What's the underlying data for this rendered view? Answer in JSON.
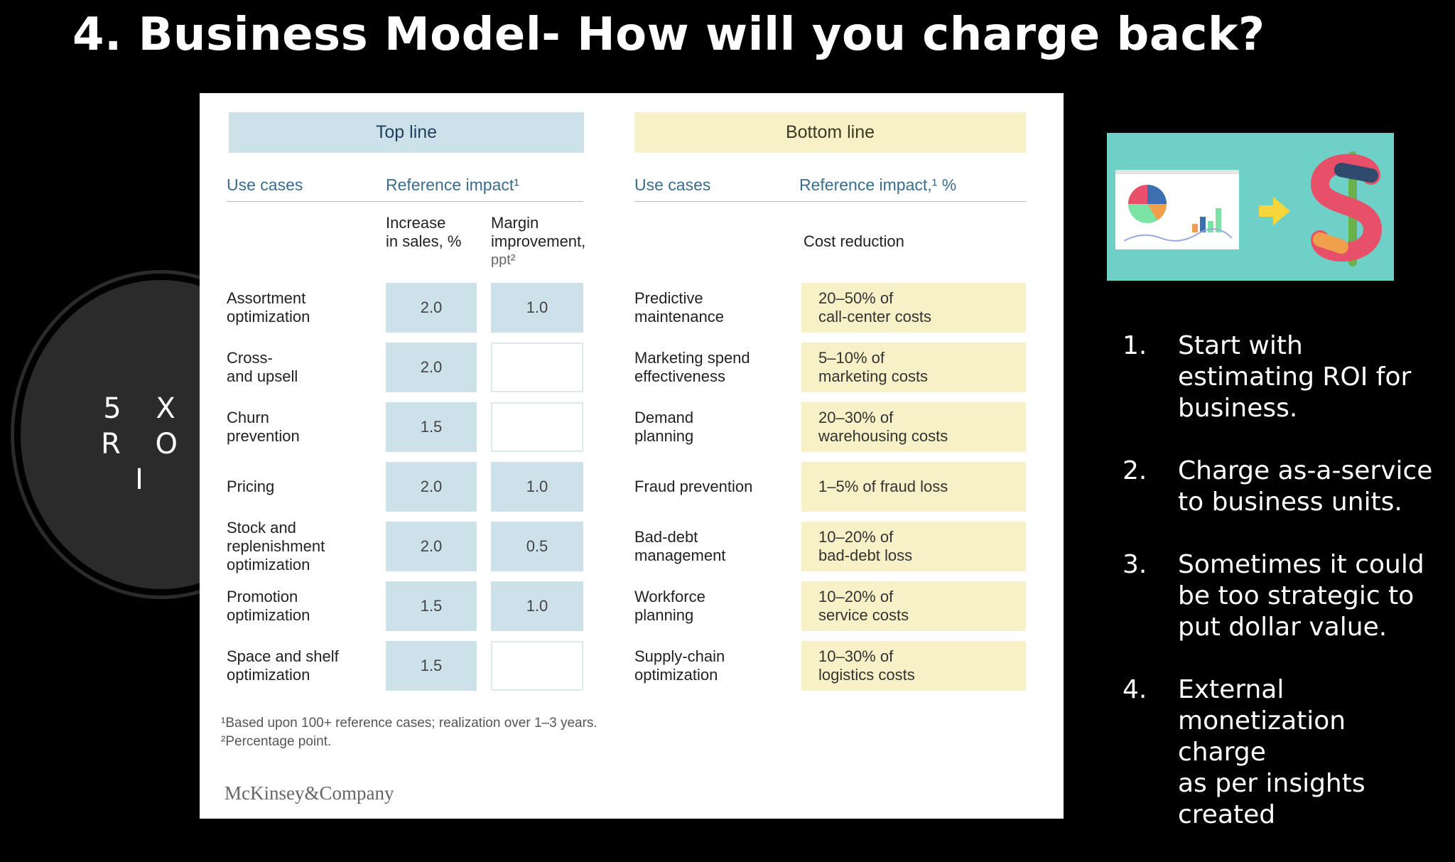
{
  "slide": {
    "title": "4. Business Model- How will you charge back?"
  },
  "roi": {
    "line1": "5 X",
    "line2": "R O I"
  },
  "table": {
    "top_header": "Top line",
    "bottom_header": "Bottom line",
    "left_use_cases": "Use cases",
    "left_ref_impact": "Reference impact¹",
    "right_use_cases": "Use cases",
    "right_ref_impact": "Reference impact,¹ %",
    "sub_sales_1": "Increase",
    "sub_sales_2": "in sales, %",
    "sub_margin_1": "Margin",
    "sub_margin_2": "improvement,",
    "sub_margin_3": "ppt²",
    "sub_cost": "Cost reduction",
    "top_rows": [
      {
        "l1": "Assortment",
        "l2": "optimization",
        "sales": "2.0",
        "margin": "1.0"
      },
      {
        "l1": "Cross-",
        "l2": "and upsell",
        "sales": "2.0",
        "margin": ""
      },
      {
        "l1": "Churn",
        "l2": "prevention",
        "sales": "1.5",
        "margin": ""
      },
      {
        "l1": "Pricing",
        "l2": "",
        "sales": "2.0",
        "margin": "1.0"
      },
      {
        "l1": "Stock and",
        "l2": "replenishment",
        "l3": "optimization",
        "sales": "2.0",
        "margin": "0.5"
      },
      {
        "l1": "Promotion",
        "l2": "optimization",
        "sales": "1.5",
        "margin": "1.0"
      },
      {
        "l1": "Space and shelf",
        "l2": "optimization",
        "sales": "1.5",
        "margin": ""
      }
    ],
    "bottom_rows": [
      {
        "l1": "Predictive",
        "l2": "maintenance",
        "c1": "20–50% of",
        "c2": "call-center costs"
      },
      {
        "l1": "Marketing spend",
        "l2": "effectiveness",
        "c1": "5–10% of",
        "c2": "marketing costs"
      },
      {
        "l1": "Demand",
        "l2": "planning",
        "c1": "20–30% of",
        "c2": "warehousing costs"
      },
      {
        "l1": "Fraud prevention",
        "l2": "",
        "c1": "1–5% of fraud loss",
        "c2": ""
      },
      {
        "l1": "Bad-debt",
        "l2": "management",
        "c1": "10–20% of",
        "c2": "bad-debt loss"
      },
      {
        "l1": "Workforce",
        "l2": "planning",
        "c1": "10–20% of",
        "c2": "service costs"
      },
      {
        "l1": "Supply-chain",
        "l2": "optimization",
        "c1": "10–30% of",
        "c2": "logistics costs"
      }
    ],
    "footnote1": "¹Based upon 100+ reference cases; realization over 1–3 years.",
    "footnote2": "²Percentage point.",
    "brand": "McKinsey&Company"
  },
  "illustration": {
    "icons": [
      "pie-chart-icon",
      "bar-chart-icon",
      "arrow-right-icon",
      "dollar-sign-icon"
    ],
    "bg_color": "#6fd0c8"
  },
  "steps": [
    {
      "num": "1.",
      "lines": [
        "Start with",
        "estimating ROI for",
        "business."
      ]
    },
    {
      "num": "2.",
      "lines": [
        "Charge as-a-service",
        "to business units."
      ]
    },
    {
      "num": "3.",
      "lines": [
        "Sometimes it could",
        "be too strategic to",
        "put dollar value."
      ]
    },
    {
      "num": "4.",
      "lines": [
        "External",
        "monetization charge",
        "as per insights",
        "created"
      ]
    }
  ]
}
